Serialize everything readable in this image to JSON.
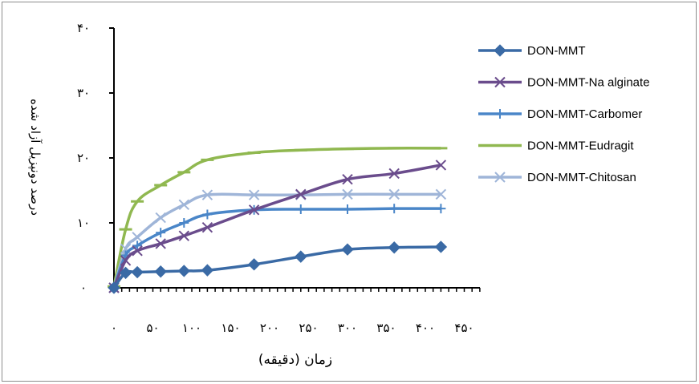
{
  "chart_data": {
    "type": "line",
    "title": "",
    "xlabel": "زمان (دقیقه)",
    "ylabel": "درصد دونپزیل آزاد شده",
    "xlim": [
      0,
      450
    ],
    "ylim": [
      0,
      40
    ],
    "x_ticks": [
      0,
      50,
      100,
      150,
      200,
      250,
      300,
      350,
      400,
      450
    ],
    "x_tick_labels": [
      "۰",
      "۵۰",
      "۱۰۰",
      "۱۵۰",
      "۲۰۰",
      "۲۵۰",
      "۳۰۰",
      "۳۵۰",
      "۴۰۰",
      "۴۵۰"
    ],
    "y_ticks": [
      0,
      10,
      20,
      30,
      40
    ],
    "y_tick_labels": [
      "۰",
      "۱۰",
      "۲۰",
      "۳۰",
      "۴۰"
    ],
    "grid": false,
    "legend_position": "right",
    "series": [
      {
        "name": "DON-MMT",
        "color": "#3a6aa5",
        "marker": "diamond",
        "x": [
          0,
          15,
          30,
          60,
          90,
          120,
          180,
          240,
          300,
          360,
          420
        ],
        "y": [
          0,
          2.3,
          2.4,
          2.5,
          2.6,
          2.7,
          3.6,
          4.8,
          5.9,
          6.2,
          6.3
        ]
      },
      {
        "name": "DON-MMT-Na alginate",
        "color": "#6a4c8c",
        "marker": "x",
        "x": [
          0,
          15,
          30,
          60,
          90,
          120,
          180,
          240,
          300,
          360,
          420
        ],
        "y": [
          0,
          4.2,
          5.7,
          6.8,
          8.0,
          9.3,
          12.0,
          14.4,
          16.7,
          17.6,
          18.9
        ]
      },
      {
        "name": "DON-MMT-Carbomer",
        "color": "#4a86c8",
        "marker": "plus",
        "x": [
          0,
          15,
          30,
          60,
          90,
          120,
          180,
          240,
          300,
          360,
          420
        ],
        "y": [
          0,
          5.0,
          6.5,
          8.5,
          10.0,
          11.3,
          12.0,
          12.1,
          12.1,
          12.2,
          12.2
        ]
      },
      {
        "name": "DON-MMT-Eudragit",
        "color": "#90b850",
        "marker": "dash",
        "x": [
          0,
          15,
          30,
          60,
          90,
          120,
          180,
          240,
          300,
          360,
          420
        ],
        "y": [
          0.2,
          9.0,
          13.3,
          15.8,
          17.8,
          19.7,
          20.8,
          21.2,
          21.4,
          21.5,
          21.5
        ]
      },
      {
        "name": "DON-MMT-Chitosan",
        "color": "#9fb5d8",
        "marker": "x",
        "x": [
          0,
          15,
          30,
          60,
          90,
          120,
          180,
          240,
          300,
          360,
          420
        ],
        "y": [
          0,
          6.0,
          7.8,
          10.8,
          12.8,
          14.3,
          14.3,
          14.3,
          14.4,
          14.4,
          14.4
        ]
      }
    ]
  }
}
